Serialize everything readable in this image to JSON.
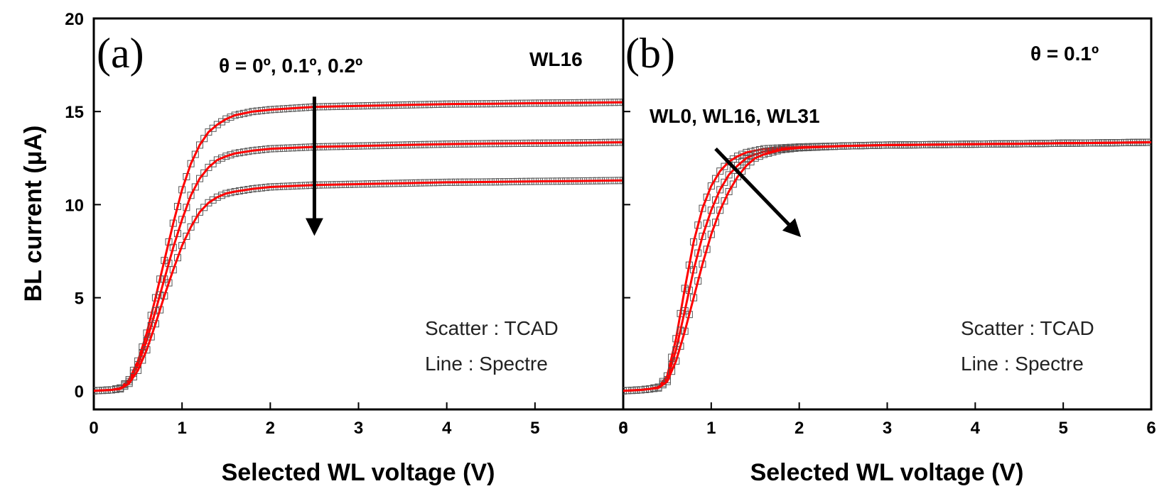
{
  "chart_data": [
    {
      "type": "line",
      "panel_label": "(a)",
      "xlabel": "Selected WL voltage (V)",
      "ylabel": "BL current (μA)",
      "xlim": [
        0,
        6
      ],
      "ylim": [
        -1,
        20
      ],
      "xticks": [
        "0",
        "1",
        "2",
        "3",
        "4",
        "5",
        "6"
      ],
      "yticks": [
        "0",
        "5",
        "10",
        "15",
        "20"
      ],
      "annotations": {
        "theta_list": "θ = 0º, 0.1º, 0.2º",
        "wordline": "WL16",
        "legend_scatter": "Scatter : TCAD",
        "legend_line": "Line : Spectre"
      },
      "arrow": {
        "from": [
          2.5,
          15.8
        ],
        "to": [
          2.5,
          8.8
        ]
      },
      "series": [
        {
          "label": "0º",
          "x": [
            0,
            0.2,
            0.3,
            0.4,
            0.5,
            0.6,
            0.7,
            0.8,
            0.9,
            1.0,
            1.1,
            1.2,
            1.3,
            1.4,
            1.5,
            1.6,
            1.8,
            2.0,
            2.5,
            3.0,
            3.5,
            4.0,
            4.5,
            5.0,
            5.5,
            6.0
          ],
          "values": [
            0.0,
            0.05,
            0.15,
            0.6,
            1.6,
            3.1,
            5.0,
            7.0,
            9.0,
            10.8,
            12.2,
            13.2,
            13.9,
            14.3,
            14.6,
            14.8,
            15.0,
            15.1,
            15.25,
            15.3,
            15.35,
            15.4,
            15.42,
            15.45,
            15.47,
            15.5
          ],
          "color": "#ff0000"
        },
        {
          "label": "0.1º",
          "x": [
            0,
            0.2,
            0.3,
            0.4,
            0.5,
            0.6,
            0.7,
            0.8,
            0.9,
            1.0,
            1.1,
            1.2,
            1.3,
            1.4,
            1.5,
            1.6,
            1.8,
            2.0,
            2.5,
            3.0,
            3.5,
            4.0,
            4.5,
            5.0,
            5.5,
            6.0
          ],
          "values": [
            0.0,
            0.05,
            0.15,
            0.5,
            1.4,
            2.7,
            4.3,
            6.0,
            7.7,
            9.2,
            10.5,
            11.4,
            12.0,
            12.4,
            12.6,
            12.75,
            12.9,
            13.0,
            13.1,
            13.15,
            13.2,
            13.25,
            13.28,
            13.3,
            13.32,
            13.35
          ],
          "color": "#ff0000"
        },
        {
          "label": "0.2º",
          "x": [
            0,
            0.2,
            0.3,
            0.4,
            0.5,
            0.6,
            0.7,
            0.8,
            0.9,
            1.0,
            1.1,
            1.2,
            1.3,
            1.4,
            1.5,
            1.6,
            1.8,
            2.0,
            2.5,
            3.0,
            3.5,
            4.0,
            4.5,
            5.0,
            5.5,
            6.0
          ],
          "values": [
            0.0,
            0.05,
            0.1,
            0.4,
            1.1,
            2.2,
            3.6,
            5.1,
            6.5,
            7.8,
            8.8,
            9.6,
            10.1,
            10.4,
            10.6,
            10.7,
            10.85,
            10.95,
            11.05,
            11.1,
            11.15,
            11.2,
            11.22,
            11.25,
            11.27,
            11.3
          ],
          "color": "#ff0000"
        }
      ]
    },
    {
      "type": "line",
      "panel_label": "(b)",
      "xlabel": "Selected WL voltage (V)",
      "ylabel": "",
      "xlim": [
        0,
        6
      ],
      "ylim": [
        -1,
        20
      ],
      "xticks": [
        "0",
        "1",
        "2",
        "3",
        "4",
        "5",
        "6"
      ],
      "yticks": [
        "",
        "",
        "",
        "",
        ""
      ],
      "annotations": {
        "theta_value": "θ = 0.1º",
        "wordlines": "WL0, WL16, WL31",
        "legend_scatter": "Scatter : TCAD",
        "legend_line": "Line : Spectre"
      },
      "arrow": {
        "from": [
          1.05,
          13.0
        ],
        "to": [
          1.95,
          8.6
        ]
      },
      "series": [
        {
          "label": "WL0",
          "x": [
            0,
            0.2,
            0.3,
            0.4,
            0.5,
            0.6,
            0.7,
            0.8,
            0.9,
            1.0,
            1.1,
            1.2,
            1.3,
            1.4,
            1.5,
            1.6,
            1.8,
            2.0,
            2.5,
            3.0,
            3.5,
            4.0,
            4.5,
            5.0,
            5.5,
            6.0
          ],
          "values": [
            0.0,
            0.05,
            0.1,
            0.2,
            0.8,
            2.8,
            5.5,
            8.0,
            9.8,
            11.0,
            11.8,
            12.3,
            12.6,
            12.8,
            12.9,
            13.0,
            13.05,
            13.1,
            13.15,
            13.2,
            13.22,
            13.25,
            13.27,
            13.3,
            13.32,
            13.35
          ],
          "color": "#ff0000"
        },
        {
          "label": "WL16",
          "x": [
            0,
            0.2,
            0.3,
            0.4,
            0.5,
            0.6,
            0.7,
            0.8,
            0.9,
            1.0,
            1.1,
            1.2,
            1.3,
            1.4,
            1.5,
            1.6,
            1.8,
            2.0,
            2.5,
            3.0,
            3.5,
            4.0,
            4.5,
            5.0,
            5.5,
            6.0
          ],
          "values": [
            0.0,
            0.05,
            0.1,
            0.2,
            0.6,
            2.2,
            4.3,
            6.5,
            8.3,
            9.7,
            10.8,
            11.6,
            12.1,
            12.5,
            12.7,
            12.85,
            13.0,
            13.05,
            13.15,
            13.2,
            13.22,
            13.25,
            13.27,
            13.3,
            13.32,
            13.35
          ],
          "color": "#ff0000"
        },
        {
          "label": "WL31",
          "x": [
            0,
            0.2,
            0.3,
            0.4,
            0.5,
            0.6,
            0.7,
            0.8,
            0.9,
            1.0,
            1.1,
            1.2,
            1.3,
            1.4,
            1.5,
            1.6,
            1.8,
            2.0,
            2.5,
            3.0,
            3.5,
            4.0,
            4.5,
            5.0,
            5.5,
            6.0
          ],
          "values": [
            0.0,
            0.05,
            0.1,
            0.15,
            0.5,
            1.6,
            3.2,
            5.0,
            6.8,
            8.4,
            9.7,
            10.7,
            11.5,
            12.1,
            12.5,
            12.7,
            12.95,
            13.05,
            13.15,
            13.2,
            13.22,
            13.25,
            13.27,
            13.3,
            13.32,
            13.35
          ],
          "color": "#ff0000"
        }
      ]
    }
  ],
  "colors": {
    "line": "#ff0000",
    "scatter": "#555555",
    "axis": "#000000",
    "arrow": "#000000"
  }
}
